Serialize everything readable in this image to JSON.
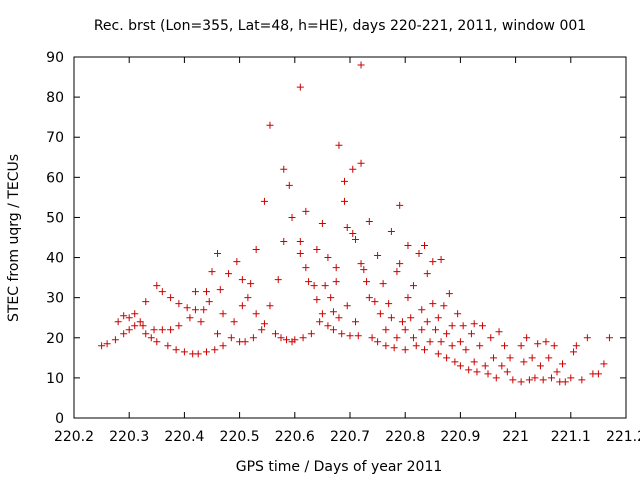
{
  "chart_data": {
    "type": "scatter",
    "title": "Rec. brst (Lon=355, Lat=48, h=HE), days 220-221, 2011, window 001",
    "xlabel": "GPS time / Days of year 2011",
    "ylabel": "STEC from uqrg / TECUs",
    "xlim": [
      220.2,
      221.2
    ],
    "ylim": [
      0,
      90
    ],
    "xticks": [
      220.2,
      220.3,
      220.4,
      220.5,
      220.6,
      220.7,
      220.8,
      220.9,
      221,
      221.1,
      221.2
    ],
    "xtick_labels": [
      "220.2",
      "220.3",
      "220.4",
      "220.5",
      "220.6",
      "220.7",
      "220.8",
      "220.9",
      "221",
      "221.1",
      "221.2"
    ],
    "yticks": [
      0,
      10,
      20,
      30,
      40,
      50,
      60,
      70,
      80,
      90
    ],
    "ytick_labels": [
      "0",
      "10",
      "20",
      "30",
      "40",
      "50",
      "60",
      "70",
      "80",
      "90"
    ],
    "grid": false,
    "marker": "+",
    "color": "#cc0000",
    "series": [
      {
        "name": "STEC",
        "points": [
          [
            220.25,
            18
          ],
          [
            220.26,
            18.5
          ],
          [
            220.275,
            19.5
          ],
          [
            220.28,
            24
          ],
          [
            220.29,
            25.5
          ],
          [
            220.29,
            21
          ],
          [
            220.3,
            25
          ],
          [
            220.3,
            22
          ],
          [
            220.31,
            26
          ],
          [
            220.31,
            23
          ],
          [
            220.32,
            24
          ],
          [
            220.325,
            23
          ],
          [
            220.33,
            29
          ],
          [
            220.33,
            21
          ],
          [
            220.34,
            20
          ],
          [
            220.345,
            22
          ],
          [
            220.35,
            33
          ],
          [
            220.35,
            19
          ],
          [
            220.36,
            31.5
          ],
          [
            220.36,
            22
          ],
          [
            220.37,
            18
          ],
          [
            220.375,
            30
          ],
          [
            220.375,
            22
          ],
          [
            220.385,
            17
          ],
          [
            220.39,
            28.5
          ],
          [
            220.39,
            23
          ],
          [
            220.4,
            16.5
          ],
          [
            220.405,
            27.5
          ],
          [
            220.41,
            25
          ],
          [
            220.415,
            16
          ],
          [
            220.42,
            27
          ],
          [
            220.42,
            31.5
          ],
          [
            220.425,
            16
          ],
          [
            220.43,
            24
          ],
          [
            220.435,
            27
          ],
          [
            220.44,
            16.5
          ],
          [
            220.44,
            31.5
          ],
          [
            220.445,
            29
          ],
          [
            220.45,
            36.5
          ],
          [
            220.455,
            17
          ],
          [
            220.46,
            41
          ],
          [
            220.46,
            21
          ],
          [
            220.465,
            32
          ],
          [
            220.47,
            26
          ],
          [
            220.47,
            18
          ],
          [
            220.48,
            36
          ],
          [
            220.485,
            20
          ],
          [
            220.49,
            24
          ],
          [
            220.495,
            39
          ],
          [
            220.5,
            19
          ],
          [
            220.505,
            34.5
          ],
          [
            220.505,
            28
          ],
          [
            220.51,
            19
          ],
          [
            220.515,
            30
          ],
          [
            220.52,
            33.5
          ],
          [
            220.525,
            20
          ],
          [
            220.53,
            42
          ],
          [
            220.53,
            26
          ],
          [
            220.54,
            22
          ],
          [
            220.545,
            54
          ],
          [
            220.545,
            23.5
          ],
          [
            220.555,
            73
          ],
          [
            220.555,
            28
          ],
          [
            220.565,
            21
          ],
          [
            220.57,
            34.5
          ],
          [
            220.575,
            20
          ],
          [
            220.58,
            62
          ],
          [
            220.58,
            44
          ],
          [
            220.585,
            19.5
          ],
          [
            220.59,
            58
          ],
          [
            220.595,
            50
          ],
          [
            220.595,
            19
          ],
          [
            220.6,
            19.5
          ],
          [
            220.61,
            82.5
          ],
          [
            220.61,
            44
          ],
          [
            220.61,
            41
          ],
          [
            220.615,
            20
          ],
          [
            220.62,
            51.5
          ],
          [
            220.62,
            37.5
          ],
          [
            220.625,
            34
          ],
          [
            220.63,
            21
          ],
          [
            220.635,
            33
          ],
          [
            220.64,
            29.5
          ],
          [
            220.64,
            42
          ],
          [
            220.645,
            24
          ],
          [
            220.65,
            48.5
          ],
          [
            220.65,
            26
          ],
          [
            220.655,
            33
          ],
          [
            220.66,
            40
          ],
          [
            220.66,
            23
          ],
          [
            220.665,
            30
          ],
          [
            220.67,
            26.5
          ],
          [
            220.67,
            22
          ],
          [
            220.675,
            34
          ],
          [
            220.675,
            37.5
          ],
          [
            220.68,
            68
          ],
          [
            220.68,
            25
          ],
          [
            220.685,
            21
          ],
          [
            220.69,
            59
          ],
          [
            220.69,
            54
          ],
          [
            220.695,
            47.5
          ],
          [
            220.695,
            28
          ],
          [
            220.7,
            20.5
          ],
          [
            220.705,
            62
          ],
          [
            220.705,
            46
          ],
          [
            220.71,
            44.5
          ],
          [
            220.71,
            24
          ],
          [
            220.715,
            20.5
          ],
          [
            220.72,
            88
          ],
          [
            220.72,
            63.5
          ],
          [
            220.72,
            38.5
          ],
          [
            220.725,
            37
          ],
          [
            220.73,
            34
          ],
          [
            220.735,
            49
          ],
          [
            220.735,
            30
          ],
          [
            220.74,
            20
          ],
          [
            220.745,
            29
          ],
          [
            220.75,
            40.5
          ],
          [
            220.75,
            19
          ],
          [
            220.755,
            26
          ],
          [
            220.76,
            33.5
          ],
          [
            220.765,
            22
          ],
          [
            220.765,
            18
          ],
          [
            220.77,
            28.5
          ],
          [
            220.775,
            46.5
          ],
          [
            220.775,
            25
          ],
          [
            220.78,
            17.5
          ],
          [
            220.785,
            36.5
          ],
          [
            220.785,
            20
          ],
          [
            220.79,
            53
          ],
          [
            220.79,
            38.5
          ],
          [
            220.795,
            24
          ],
          [
            220.8,
            22
          ],
          [
            220.8,
            17
          ],
          [
            220.805,
            43
          ],
          [
            220.805,
            30
          ],
          [
            220.81,
            25
          ],
          [
            220.815,
            33
          ],
          [
            220.815,
            20
          ],
          [
            220.82,
            18
          ],
          [
            220.825,
            41
          ],
          [
            220.83,
            27
          ],
          [
            220.83,
            22
          ],
          [
            220.835,
            43
          ],
          [
            220.835,
            17
          ],
          [
            220.84,
            36
          ],
          [
            220.84,
            24
          ],
          [
            220.845,
            19
          ],
          [
            220.85,
            39
          ],
          [
            220.85,
            28.5
          ],
          [
            220.855,
            22
          ],
          [
            220.86,
            16
          ],
          [
            220.86,
            25
          ],
          [
            220.865,
            39.5
          ],
          [
            220.865,
            19
          ],
          [
            220.87,
            28
          ],
          [
            220.875,
            21
          ],
          [
            220.875,
            15
          ],
          [
            220.88,
            31
          ],
          [
            220.885,
            23
          ],
          [
            220.885,
            18
          ],
          [
            220.89,
            14
          ],
          [
            220.895,
            26
          ],
          [
            220.9,
            19
          ],
          [
            220.9,
            13
          ],
          [
            220.905,
            23
          ],
          [
            220.91,
            17
          ],
          [
            220.915,
            12
          ],
          [
            220.92,
            21
          ],
          [
            220.925,
            23.5
          ],
          [
            220.925,
            14
          ],
          [
            220.93,
            11.5
          ],
          [
            220.935,
            18
          ],
          [
            220.94,
            23
          ],
          [
            220.945,
            13
          ],
          [
            220.95,
            11
          ],
          [
            220.955,
            20
          ],
          [
            220.96,
            15
          ],
          [
            220.965,
            10
          ],
          [
            220.97,
            21.5
          ],
          [
            220.975,
            13
          ],
          [
            220.98,
            18
          ],
          [
            220.985,
            11.5
          ],
          [
            220.99,
            15
          ],
          [
            220.995,
            9.5
          ],
          [
            221.01,
            9
          ],
          [
            221.01,
            18
          ],
          [
            221.015,
            14
          ],
          [
            221.02,
            20
          ],
          [
            221.025,
            9.5
          ],
          [
            221.03,
            15
          ],
          [
            221.035,
            10
          ],
          [
            221.04,
            18.5
          ],
          [
            221.045,
            13
          ],
          [
            221.05,
            9.5
          ],
          [
            221.055,
            19
          ],
          [
            221.06,
            15
          ],
          [
            221.065,
            10
          ],
          [
            221.07,
            18
          ],
          [
            221.075,
            11.5
          ],
          [
            221.08,
            9
          ],
          [
            221.085,
            13.5
          ],
          [
            221.09,
            9
          ],
          [
            221.1,
            10
          ],
          [
            221.105,
            16.5
          ],
          [
            221.11,
            18
          ],
          [
            221.12,
            9.5
          ],
          [
            221.13,
            20
          ],
          [
            221.14,
            11
          ],
          [
            221.15,
            11
          ],
          [
            221.16,
            13.5
          ],
          [
            221.17,
            20
          ]
        ]
      }
    ]
  }
}
